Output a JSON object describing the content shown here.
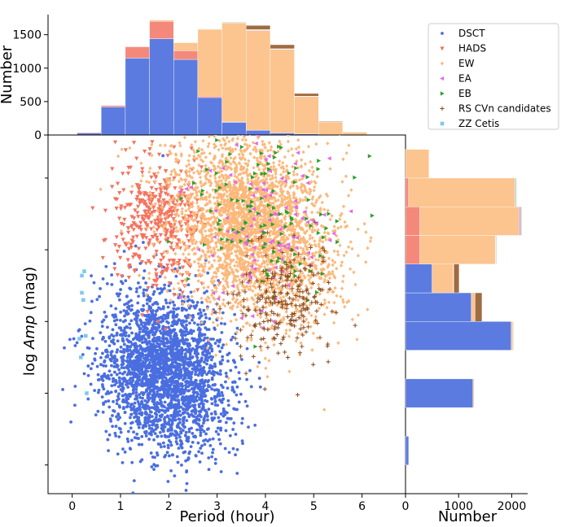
{
  "chart_data": [
    {
      "panel": "top-histogram",
      "type": "bar",
      "stacked": true,
      "xlim": [
        -0.5,
        6.9
      ],
      "ylim": [
        0,
        1800
      ],
      "bin_edges": [
        0.1,
        0.6,
        1.1,
        1.6,
        2.1,
        2.6,
        3.1,
        3.6,
        4.1,
        4.6,
        5.1,
        5.6,
        6.1,
        6.6
      ],
      "yticks": [
        "0",
        "500",
        "1000",
        "1500"
      ],
      "ylabel": "Number",
      "series": [
        {
          "name": "DSCT",
          "color": "#5b7be0",
          "values": [
            30,
            420,
            1150,
            1440,
            1130,
            560,
            190,
            70,
            30,
            15,
            5,
            2,
            0
          ]
        },
        {
          "name": "HADS",
          "color": "#f4897b",
          "values": [
            10,
            20,
            170,
            260,
            130,
            20,
            5,
            2,
            0,
            0,
            0,
            0,
            0
          ]
        },
        {
          "name": "EW",
          "color": "#fcc48e",
          "values": [
            0,
            0,
            5,
            20,
            120,
            1000,
            1480,
            1490,
            1250,
            560,
            190,
            40,
            0
          ]
        },
        {
          "name": "EA",
          "color": "#e58be6",
          "values": [
            0,
            0,
            0,
            2,
            3,
            5,
            8,
            8,
            5,
            3,
            1,
            0,
            0
          ]
        },
        {
          "name": "EB",
          "color": "#5bb85b",
          "values": [
            0,
            0,
            0,
            2,
            3,
            5,
            8,
            8,
            5,
            3,
            1,
            0,
            0
          ]
        },
        {
          "name": "RS CVn candidates",
          "color": "#9e6b42",
          "values": [
            0,
            0,
            0,
            0,
            1,
            2,
            5,
            60,
            60,
            40,
            10,
            2,
            0
          ]
        },
        {
          "name": "ZZ Cetis",
          "color": "#7ec9ef",
          "values": [
            0,
            0,
            0,
            0,
            0,
            0,
            0,
            0,
            0,
            0,
            0,
            0,
            0
          ]
        }
      ]
    },
    {
      "panel": "scatter",
      "type": "scatter",
      "xlabel_prefix": "Period (hour)",
      "ylabel_prefix": "log ",
      "ylabel_italic": "Amp",
      "ylabel_suffix": " (mag)",
      "xlim": [
        -0.5,
        6.9
      ],
      "ylim": [
        -2.9,
        -0.4
      ],
      "xticks": [
        "0",
        "1",
        "2",
        "3",
        "4",
        "5",
        "6"
      ],
      "xtick_values": [
        0,
        1,
        2,
        3,
        4,
        5,
        6
      ],
      "ytick_values": [
        -2.7,
        -2.2,
        -1.7,
        -1.2,
        -0.7
      ],
      "series": [
        {
          "name": "DSCT",
          "marker": "circle",
          "color": "#4a6ee0",
          "n": 2600,
          "center": [
            1.9,
            -2.05
          ],
          "spread": [
            0.65,
            0.28
          ],
          "r": -0.15
        },
        {
          "name": "HADS",
          "marker": "triangle-down",
          "color": "#f4735f",
          "n": 420,
          "center": [
            1.8,
            -1.0
          ],
          "spread": [
            0.5,
            0.22
          ],
          "r": 0.0
        },
        {
          "name": "EW",
          "marker": "diamond",
          "color": "#fcb87a",
          "n": 3000,
          "center": [
            3.75,
            -1.05
          ],
          "spread": [
            0.85,
            0.32
          ],
          "r": -0.25
        },
        {
          "name": "EA",
          "marker": "triangle-left",
          "color": "#e06ae6",
          "n": 110,
          "center": [
            3.9,
            -1.05
          ],
          "spread": [
            0.75,
            0.3
          ],
          "r": 0.0
        },
        {
          "name": "EB",
          "marker": "triangle-right",
          "color": "#2ca02c",
          "n": 120,
          "center": [
            3.9,
            -0.95
          ],
          "spread": [
            0.8,
            0.28
          ],
          "r": 0.0
        },
        {
          "name": "RS CVn candidates",
          "marker": "plus",
          "color": "#8b4a1e",
          "n": 230,
          "center": [
            4.3,
            -1.55
          ],
          "spread": [
            0.55,
            0.2
          ],
          "r": 0.0
        },
        {
          "name": "ZZ Cetis",
          "marker": "square",
          "color": "#7ec9ef",
          "points": [
            [
              0.2,
              -1.38
            ],
            [
              0.25,
              -1.35
            ],
            [
              0.2,
              -1.5
            ],
            [
              0.23,
              -1.55
            ],
            [
              0.28,
              -1.8
            ],
            [
              0.15,
              -1.82
            ],
            [
              0.3,
              -2.2
            ],
            [
              0.18,
              -1.95
            ]
          ]
        }
      ]
    },
    {
      "panel": "right-histogram",
      "type": "bar",
      "orientation": "horizontal",
      "stacked": true,
      "xlim": [
        0,
        2300
      ],
      "xticks": [
        "0",
        "1000",
        "2000"
      ],
      "xtick_values": [
        0,
        1000,
        2000
      ],
      "xlabel": "Number",
      "bin_edges": [
        -2.9,
        -2.7,
        -2.5,
        -2.3,
        -2.1,
        -1.9,
        -1.7,
        -1.5,
        -1.3,
        -1.1,
        -0.9,
        -0.7,
        -0.5
      ],
      "series": [
        {
          "name": "DSCT",
          "color": "#5b7be0",
          "values": [
            0,
            60,
            0,
            1270,
            0,
            1990,
            1240,
            500,
            0,
            0,
            0,
            0
          ]
        },
        {
          "name": "HADS",
          "color": "#f4897b",
          "values": [
            0,
            0,
            0,
            0,
            0,
            0,
            0,
            0,
            270,
            270,
            60,
            0
          ]
        },
        {
          "name": "EW",
          "color": "#fcc48e",
          "values": [
            0,
            0,
            0,
            20,
            0,
            30,
            70,
            400,
            1420,
            1870,
            2000,
            440
          ]
        },
        {
          "name": "EA",
          "color": "#e58be6",
          "values": [
            0,
            0,
            0,
            0,
            0,
            0,
            0,
            5,
            10,
            30,
            10,
            0
          ]
        },
        {
          "name": "EB",
          "color": "#5bb85b",
          "values": [
            0,
            0,
            0,
            0,
            0,
            0,
            0,
            5,
            10,
            15,
            15,
            0
          ]
        },
        {
          "name": "RS CVn candidates",
          "color": "#9e6b42",
          "values": [
            0,
            0,
            0,
            0,
            0,
            10,
            130,
            100,
            0,
            0,
            0,
            0
          ]
        },
        {
          "name": "ZZ Cetis",
          "color": "#7ec9ef",
          "values": [
            0,
            0,
            0,
            0,
            0,
            0,
            0,
            0,
            0,
            0,
            0,
            0
          ]
        }
      ]
    }
  ],
  "legend": {
    "placement": "top-right",
    "entries": [
      {
        "label": "DSCT",
        "marker": "circle",
        "color": "#4a6ee0"
      },
      {
        "label": "HADS",
        "marker": "triangle-down",
        "color": "#f4735f"
      },
      {
        "label": "EW",
        "marker": "diamond",
        "color": "#fcb87a"
      },
      {
        "label": "EA",
        "marker": "triangle-left",
        "color": "#e06ae6"
      },
      {
        "label": "EB",
        "marker": "triangle-right",
        "color": "#2ca02c"
      },
      {
        "label": "RS CVn candidates",
        "marker": "plus",
        "color": "#8b4a1e"
      },
      {
        "label": "ZZ Cetis",
        "marker": "square",
        "color": "#7ec9ef"
      }
    ]
  }
}
